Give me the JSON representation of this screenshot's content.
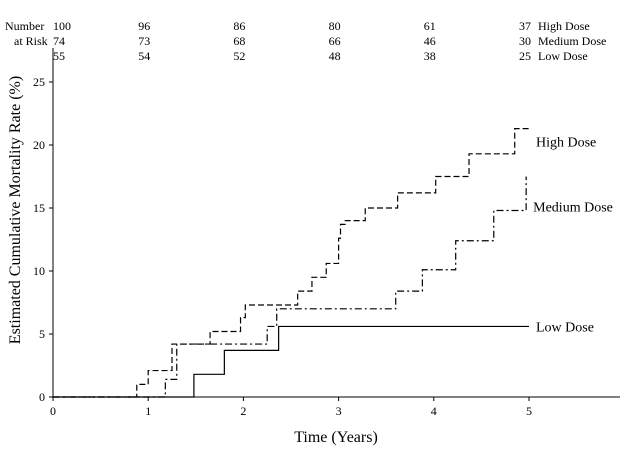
{
  "chart_data": {
    "type": "line",
    "subtype": "step",
    "xlabel": "Time (Years)",
    "ylabel": "Estimated Cumulative Mortality Rate (%)",
    "xlim": [
      0,
      6
    ],
    "ylim": [
      0,
      25
    ],
    "xticks": [
      0,
      1,
      2,
      3,
      4,
      5
    ],
    "yticks": [
      0,
      5,
      10,
      15,
      20,
      25
    ],
    "grid": false,
    "legend": "none",
    "risk_table": {
      "header_line1": "Number",
      "header_line2": "at Risk",
      "times": [
        0,
        1,
        2,
        3,
        4,
        5
      ],
      "rows": [
        {
          "label": "High Dose",
          "values": [
            100,
            96,
            86,
            80,
            61,
            37
          ]
        },
        {
          "label": "Medium Dose",
          "values": [
            74,
            73,
            68,
            66,
            46,
            30
          ]
        },
        {
          "label": "Low Dose",
          "values": [
            55,
            54,
            52,
            48,
            38,
            25
          ]
        }
      ]
    },
    "series": [
      {
        "name": "High Dose",
        "dash": "dashed",
        "end_x": 5,
        "steps": [
          [
            0,
            0
          ],
          [
            0.88,
            1.0
          ],
          [
            1.0,
            2.1
          ],
          [
            1.25,
            4.2
          ],
          [
            1.65,
            5.2
          ],
          [
            1.97,
            6.3
          ],
          [
            2.02,
            7.3
          ],
          [
            2.57,
            8.4
          ],
          [
            2.72,
            9.5
          ],
          [
            2.87,
            10.6
          ],
          [
            3.0,
            12.6
          ],
          [
            3.02,
            13.7
          ],
          [
            3.07,
            14.0
          ],
          [
            3.28,
            15.0
          ],
          [
            3.62,
            16.2
          ],
          [
            4.02,
            17.5
          ],
          [
            4.37,
            19.3
          ],
          [
            4.85,
            21.3
          ]
        ]
      },
      {
        "name": "Medium Dose",
        "dash": "dash-dot",
        "end_x": 4.97,
        "steps": [
          [
            0,
            0
          ],
          [
            1.18,
            1.4
          ],
          [
            1.3,
            4.2
          ],
          [
            2.25,
            5.6
          ],
          [
            2.35,
            7.0
          ],
          [
            3.6,
            8.4
          ],
          [
            3.88,
            10.1
          ],
          [
            4.23,
            12.4
          ],
          [
            4.63,
            14.8
          ],
          [
            4.97,
            17.5
          ]
        ]
      },
      {
        "name": "Low Dose",
        "dash": "solid",
        "end_x": 5,
        "steps": [
          [
            0,
            0
          ],
          [
            1.48,
            1.8
          ],
          [
            1.8,
            3.7
          ],
          [
            2.37,
            5.6
          ]
        ]
      }
    ]
  }
}
